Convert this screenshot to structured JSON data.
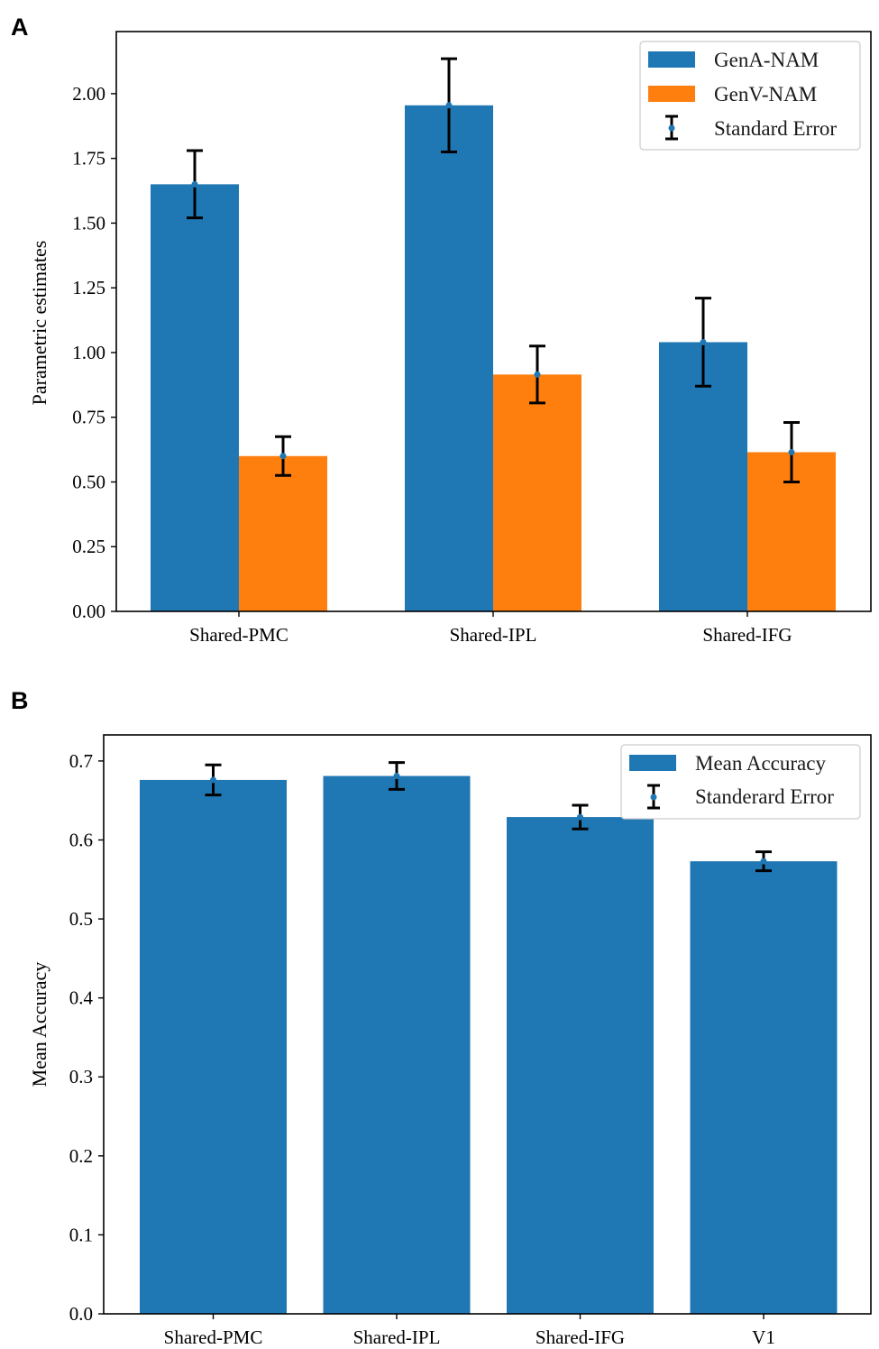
{
  "colors": {
    "blue": "#1f77b4",
    "orange": "#ff7f0e",
    "error": "#000000"
  },
  "chart_data": [
    {
      "panel": "A",
      "type": "bar",
      "title": "",
      "xlabel": "",
      "ylabel": "Parametric estimates",
      "ylim": [
        0,
        2.24
      ],
      "yticks": [
        0,
        0.25,
        0.5,
        0.75,
        1.0,
        1.25,
        1.5,
        1.75,
        2.0
      ],
      "ytick_labels": [
        "0.00",
        "0.25",
        "0.50",
        "0.75",
        "1.00",
        "1.25",
        "1.50",
        "1.75",
        "2.00"
      ],
      "categories": [
        "Shared-PMC",
        "Shared-IPL",
        "Shared-IFG"
      ],
      "series": [
        {
          "name": "GenA-NAM",
          "color": "#1f77b4",
          "values": [
            1.65,
            1.955,
            1.04
          ],
          "errors": [
            0.13,
            0.18,
            0.17
          ]
        },
        {
          "name": "GenV-NAM",
          "color": "#ff7f0e",
          "values": [
            0.6,
            0.915,
            0.615
          ],
          "errors": [
            0.075,
            0.11,
            0.115
          ]
        }
      ],
      "legend": {
        "placement": "top-right",
        "entries": [
          "GenA-NAM",
          "GenV-NAM",
          "Standard Error"
        ]
      }
    },
    {
      "panel": "B",
      "type": "bar",
      "title": "",
      "xlabel": "",
      "ylabel": "Mean Accuracy",
      "ylim": [
        0,
        0.733
      ],
      "yticks": [
        0,
        0.1,
        0.2,
        0.3,
        0.4,
        0.5,
        0.6,
        0.7
      ],
      "ytick_labels": [
        "0.0",
        "0.1",
        "0.2",
        "0.3",
        "0.4",
        "0.5",
        "0.6",
        "0.7"
      ],
      "categories": [
        "Shared-PMC",
        "Shared-IPL",
        "Shared-IFG",
        "V1"
      ],
      "series": [
        {
          "name": "Mean Accuracy",
          "color": "#1f77b4",
          "values": [
            0.676,
            0.681,
            0.629,
            0.573
          ],
          "errors": [
            0.019,
            0.017,
            0.015,
            0.012
          ]
        }
      ],
      "legend": {
        "placement": "top-right",
        "entries": [
          "Mean Accuracy",
          "Standerard Error"
        ]
      }
    }
  ]
}
